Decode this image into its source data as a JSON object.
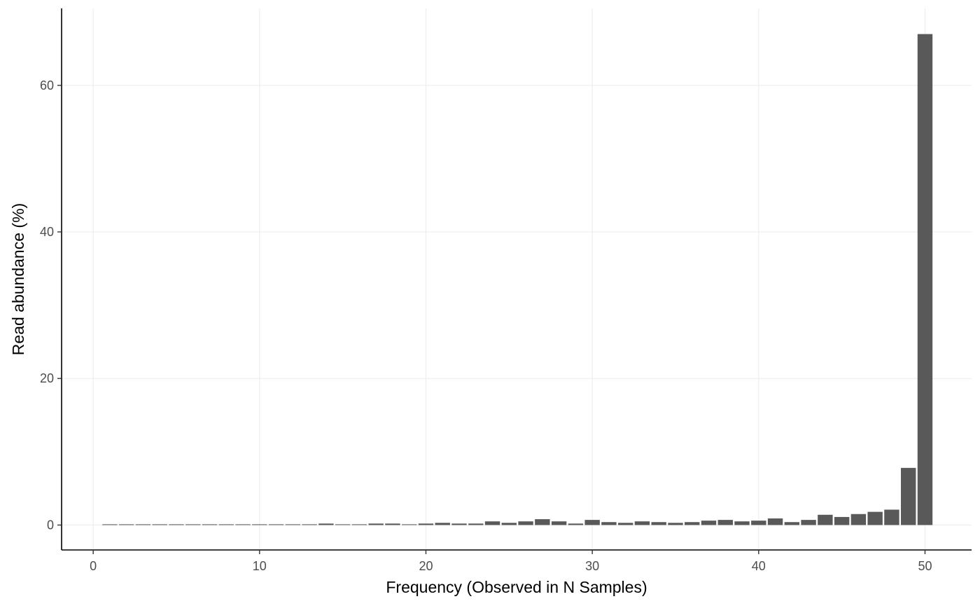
{
  "chart_data": {
    "type": "bar",
    "xlabel": "Frequency (Observed in N Samples)",
    "ylabel": "Read abundance (%)",
    "xlim": [
      -1.9,
      52.8
    ],
    "ylim": [
      -3.4,
      70.5
    ],
    "x_ticks": [
      0,
      10,
      20,
      30,
      40,
      50
    ],
    "y_ticks": [
      0,
      20,
      40,
      60
    ],
    "grid": true,
    "bar_color": "#595959",
    "x": [
      1,
      2,
      3,
      4,
      5,
      6,
      7,
      8,
      9,
      10,
      11,
      12,
      13,
      14,
      15,
      16,
      17,
      18,
      19,
      20,
      21,
      22,
      23,
      24,
      25,
      26,
      27,
      28,
      29,
      30,
      31,
      32,
      33,
      34,
      35,
      36,
      37,
      38,
      39,
      40,
      41,
      42,
      43,
      44,
      45,
      46,
      47,
      48,
      49,
      50
    ],
    "values": [
      0.1,
      0.1,
      0.1,
      0.1,
      0.1,
      0.1,
      0.1,
      0.1,
      0.1,
      0.1,
      0.1,
      0.1,
      0.1,
      0.2,
      0.1,
      0.1,
      0.2,
      0.2,
      0.1,
      0.2,
      0.3,
      0.2,
      0.2,
      0.5,
      0.3,
      0.5,
      0.8,
      0.5,
      0.2,
      0.7,
      0.4,
      0.3,
      0.5,
      0.4,
      0.3,
      0.4,
      0.6,
      0.7,
      0.5,
      0.6,
      0.9,
      0.4,
      0.7,
      1.4,
      1.1,
      1.5,
      1.8,
      2.1,
      7.8,
      67.0
    ]
  }
}
